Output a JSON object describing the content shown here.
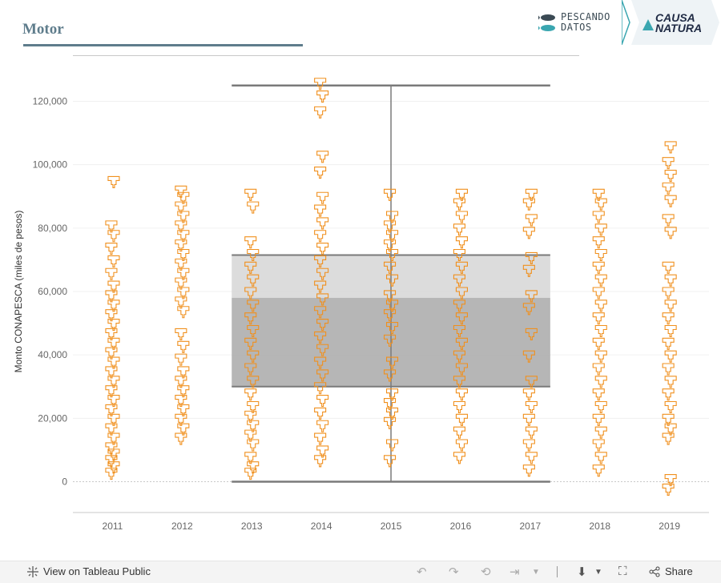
{
  "header": {
    "title": "Motor",
    "logo_pescando": [
      "PESCANDO",
      "DATOS"
    ],
    "logo_causa": [
      "CAUSA",
      "NATURA"
    ]
  },
  "colors": {
    "accent": "#5f7d8c",
    "mark": "#f0901e",
    "band_dark": "#a9a9a9",
    "band_light": "#d6d6d6",
    "whisker": "#7a7a7a"
  },
  "chart_data": {
    "type": "scatter",
    "ylabel": "Monto CONAPESCA (miles de pesos)",
    "xlabel": "",
    "categories": [
      "2011",
      "2012",
      "2013",
      "2014",
      "2015",
      "2016",
      "2017",
      "2018",
      "2019"
    ],
    "yticks": [
      0,
      20000,
      40000,
      60000,
      80000,
      100000,
      120000
    ],
    "ytick_labels": [
      "0",
      "20,000",
      "40,000",
      "60,000",
      "80,000",
      "100,000",
      "120,000"
    ],
    "ylim": [
      -10000,
      130000
    ],
    "boxplot": {
      "span": [
        "2013",
        "2017"
      ],
      "whisker_low": 0,
      "q1": 30000,
      "median": 58000,
      "q3": 71500,
      "whisker_high": 125000
    },
    "series": [
      {
        "category": "2011",
        "values": [
          3000,
          5000,
          7000,
          9000,
          11000,
          14000,
          17000,
          20000,
          23000,
          26000,
          29000,
          32000,
          35000,
          38000,
          41000,
          44000,
          47000,
          50000,
          53000,
          56000,
          59000,
          62000,
          66000,
          70000,
          74000,
          78000,
          81000,
          95000
        ]
      },
      {
        "category": "2012",
        "values": [
          14000,
          17000,
          20000,
          23000,
          26000,
          29000,
          32000,
          35000,
          39000,
          43000,
          47000,
          54000,
          57000,
          60000,
          63000,
          66000,
          69000,
          72000,
          75000,
          78000,
          81000,
          84000,
          87000,
          90000,
          92000
        ]
      },
      {
        "category": "2013",
        "values": [
          3000,
          5000,
          8000,
          12000,
          15000,
          18000,
          21000,
          24000,
          28000,
          32000,
          36000,
          40000,
          44000,
          48000,
          52000,
          56000,
          60000,
          64000,
          68000,
          72000,
          76000,
          87000,
          91000
        ]
      },
      {
        "category": "2014",
        "values": [
          7000,
          10000,
          14000,
          18000,
          22000,
          26000,
          30000,
          34000,
          38000,
          42000,
          46000,
          50000,
          54000,
          58000,
          62000,
          66000,
          70000,
          74000,
          78000,
          82000,
          86000,
          90000,
          98000,
          103000,
          117000,
          122000,
          126000
        ]
      },
      {
        "category": "2015",
        "values": [
          7000,
          12000,
          19000,
          22000,
          25000,
          28000,
          34000,
          38000,
          45000,
          49000,
          53000,
          56000,
          59000,
          64000,
          68000,
          72000,
          75000,
          78000,
          81000,
          84000,
          91000
        ]
      },
      {
        "category": "2016",
        "values": [
          8000,
          12000,
          16000,
          20000,
          24000,
          28000,
          32000,
          36000,
          40000,
          44000,
          48000,
          52000,
          56000,
          60000,
          64000,
          68000,
          72000,
          76000,
          80000,
          84000,
          88000,
          91000
        ]
      },
      {
        "category": "2017",
        "values": [
          4000,
          8000,
          12000,
          16000,
          20000,
          24000,
          28000,
          32000,
          40000,
          47000,
          55000,
          59000,
          67000,
          71000,
          79000,
          83000,
          88000,
          91000
        ]
      },
      {
        "category": "2018",
        "values": [
          4000,
          8000,
          12000,
          16000,
          20000,
          24000,
          28000,
          32000,
          36000,
          40000,
          44000,
          48000,
          52000,
          56000,
          60000,
          64000,
          68000,
          72000,
          76000,
          80000,
          84000,
          88000,
          91000
        ]
      },
      {
        "category": "2019",
        "values": [
          -2000,
          1000,
          14000,
          17000,
          20000,
          24000,
          28000,
          32000,
          36000,
          40000,
          44000,
          48000,
          52000,
          56000,
          60000,
          64000,
          68000,
          79000,
          83000,
          89000,
          93000,
          97000,
          101000,
          106000
        ]
      }
    ]
  },
  "footer": {
    "view_label": "View on Tableau Public",
    "share_label": "Share"
  }
}
